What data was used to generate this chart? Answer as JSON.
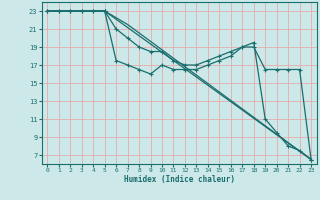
{
  "xlabel": "Humidex (Indice chaleur)",
  "background_color": "#cce8e8",
  "grid_color": "#e8a0a0",
  "line_color": "#1a6e6e",
  "xlim": [
    -0.5,
    23.5
  ],
  "ylim": [
    6,
    24
  ],
  "xticks": [
    0,
    1,
    2,
    3,
    4,
    5,
    6,
    7,
    8,
    9,
    10,
    11,
    12,
    13,
    14,
    15,
    16,
    17,
    18,
    19,
    20,
    21,
    22,
    23
  ],
  "yticks": [
    7,
    9,
    11,
    13,
    15,
    17,
    19,
    21,
    23
  ],
  "line1_x": [
    0,
    1,
    2,
    3,
    4,
    5,
    5,
    6,
    7,
    8,
    9,
    10,
    11,
    12,
    13,
    14,
    15,
    16,
    17,
    18,
    19,
    20,
    21,
    22,
    23
  ],
  "line1_y": [
    23,
    23,
    23,
    23,
    23,
    23,
    23,
    21,
    20,
    19,
    18.5,
    18.5,
    17.5,
    17,
    17,
    17.5,
    18,
    18.5,
    19,
    19.5,
    11,
    9.5,
    8,
    7.5,
    6.5
  ],
  "line2_x": [
    0,
    1,
    2,
    3,
    4,
    5,
    6,
    7,
    8,
    9,
    10,
    11,
    12,
    13,
    14,
    15,
    16,
    17,
    18,
    19,
    20,
    21,
    22,
    23
  ],
  "line2_y": [
    23,
    23,
    23,
    23,
    23,
    23,
    17.5,
    17,
    16.5,
    16,
    17,
    16.5,
    16.5,
    16.5,
    17,
    17.5,
    18,
    19,
    19,
    16.5,
    16.5,
    16.5,
    16.5,
    6.5
  ],
  "line3_x": [
    0,
    5,
    23
  ],
  "line3_y": [
    23,
    23,
    6.5
  ],
  "line4_x": [
    0,
    5,
    7,
    23
  ],
  "line4_y": [
    23,
    23,
    21.5,
    6.5
  ]
}
